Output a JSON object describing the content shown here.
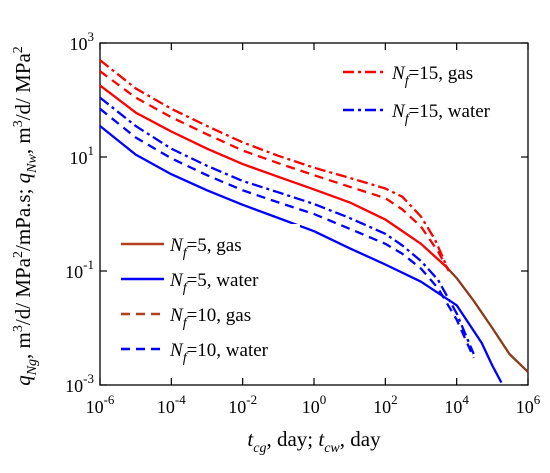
{
  "chart_data": {
    "type": "line",
    "x_scale": "log",
    "y_scale": "log",
    "xlim": [
      1e-06,
      1000000.0
    ],
    "ylim": [
      0.001,
      1000.0
    ],
    "grid": false,
    "xlabel": {
      "parts": [
        {
          "t": "t",
          "italic": true
        },
        {
          "t": "cg",
          "italic": true,
          "sub": true
        },
        {
          "t": ", day; "
        },
        {
          "t": "t",
          "italic": true
        },
        {
          "t": "cw",
          "italic": true,
          "sub": true
        },
        {
          "t": ", day"
        }
      ]
    },
    "ylabel": {
      "parts": [
        {
          "t": "q",
          "italic": true
        },
        {
          "t": "Ng",
          "italic": true,
          "sub": true
        },
        {
          "t": ", m"
        },
        {
          "t": "3",
          "sup": true
        },
        {
          "t": "/d/ MPa"
        },
        {
          "t": "2",
          "sup": true
        },
        {
          "t": "/mPa.s; "
        },
        {
          "t": "q",
          "italic": true
        },
        {
          "t": "Nw",
          "italic": true,
          "sub": true
        },
        {
          "t": ", m"
        },
        {
          "t": "3",
          "sup": true
        },
        {
          "t": "/d/ MPa"
        },
        {
          "t": "2",
          "sup": true
        }
      ]
    },
    "xticks": [
      {
        "exp": "-6",
        "value": 1e-06
      },
      {
        "exp": "-4",
        "value": 0.0001
      },
      {
        "exp": "-2",
        "value": 0.01
      },
      {
        "exp": "0",
        "value": 1
      },
      {
        "exp": "2",
        "value": 100.0
      },
      {
        "exp": "4",
        "value": 10000.0
      },
      {
        "exp": "6",
        "value": 1000000.0
      }
    ],
    "yticks": [
      {
        "mant": "10",
        "exp": "-3",
        "value": 0.001
      },
      {
        "mant": "10",
        "exp": "-1",
        "value": 0.1
      },
      {
        "mant": "10",
        "exp": "1",
        "value": 10
      },
      {
        "mant": "10",
        "exp": "3",
        "value": 1000
      }
    ],
    "series": [
      {
        "id": "nf15-gas",
        "color": "#ff0000",
        "dash": "dashdot",
        "legend": {
          "box": "top",
          "nf": "=15, gas"
        },
        "x": [
          1e-06,
          1e-05,
          0.0001,
          0.001,
          0.01,
          0.1,
          1,
          10.0,
          100.0,
          300.0,
          1000.0,
          2500.0,
          6000.0
        ],
        "y": [
          500,
          160,
          70,
          35,
          18,
          10.5,
          6.5,
          4.3,
          2.8,
          2.0,
          0.9,
          0.35,
          0.1
        ]
      },
      {
        "id": "nf15-water",
        "color": "#0000ff",
        "dash": "dashdot",
        "legend": {
          "box": "top",
          "nf": "=15, water"
        },
        "x": [
          1e-06,
          1e-05,
          0.0001,
          0.001,
          0.01,
          0.1,
          1,
          10.0,
          100.0,
          300.0,
          1000.0,
          3000.0,
          10000.0,
          30000.0
        ],
        "y": [
          110,
          35,
          14,
          7,
          3.8,
          2.4,
          1.5,
          0.85,
          0.45,
          0.28,
          0.15,
          0.07,
          0.018,
          0.0035
        ]
      },
      {
        "id": "nf5-gas",
        "color": "#ff0000",
        "dash": "solid",
        "legend": {
          "box": "bottom",
          "nf": "=5, gas"
        },
        "x": [
          1e-06,
          1e-05,
          0.0001,
          0.001,
          0.01,
          0.1,
          1,
          10.0,
          100.0,
          1000.0,
          5000.0
        ],
        "y": [
          180,
          60,
          28,
          14,
          7.5,
          4.5,
          2.7,
          1.6,
          0.8,
          0.3,
          0.12
        ]
      },
      {
        "id": "nf5-gas-tail",
        "color": "#8b3a1a",
        "dash": "solid",
        "x": [
          5000.0,
          10000.0,
          30000.0,
          100000.0,
          300000.0,
          1000000.0
        ],
        "y": [
          0.12,
          0.075,
          0.03,
          0.01,
          0.0035,
          0.0017
        ]
      },
      {
        "id": "nf5-water",
        "color": "#0000ff",
        "dash": "solid",
        "legend": {
          "box": "bottom",
          "nf": "=5, water"
        },
        "x": [
          1e-06,
          1e-05,
          0.0001,
          0.001,
          0.01,
          0.1,
          1,
          10.0,
          100.0,
          1000.0,
          10000.0,
          50000.0,
          100000.0,
          180000.0
        ],
        "y": [
          35,
          11,
          5,
          2.6,
          1.45,
          0.85,
          0.5,
          0.25,
          0.13,
          0.065,
          0.025,
          0.0055,
          0.0022,
          0.0011
        ]
      },
      {
        "id": "nf10-gas",
        "color": "#ff0000",
        "dash": "dash",
        "legend": {
          "box": "bottom",
          "nf": "=10, gas"
        },
        "x": [
          1e-06,
          1e-05,
          0.0001,
          0.001,
          0.01,
          0.1,
          1,
          10.0,
          100.0,
          300.0,
          1000.0,
          3000.0,
          6000.0
        ],
        "y": [
          320,
          110,
          50,
          25,
          13,
          7.8,
          4.8,
          3.0,
          1.9,
          1.2,
          0.6,
          0.22,
          0.1
        ]
      },
      {
        "id": "nf10-water",
        "color": "#0000ff",
        "dash": "dash",
        "legend": {
          "box": "bottom",
          "nf": "=10, water"
        },
        "x": [
          1e-06,
          1e-05,
          0.0001,
          0.001,
          0.01,
          0.1,
          1,
          10.0,
          100.0,
          300.0,
          1000.0,
          3000.0,
          10000.0,
          30000.0
        ],
        "y": [
          70,
          22,
          9.5,
          4.8,
          2.6,
          1.6,
          1.0,
          0.55,
          0.3,
          0.2,
          0.11,
          0.05,
          0.014,
          0.003
        ]
      }
    ],
    "legend_sample_colors": {
      "nf5-gas": "#b2401f",
      "nf10-gas": "#b2401f"
    },
    "legend_symbol": {
      "n": "N",
      "sub": "f"
    }
  }
}
